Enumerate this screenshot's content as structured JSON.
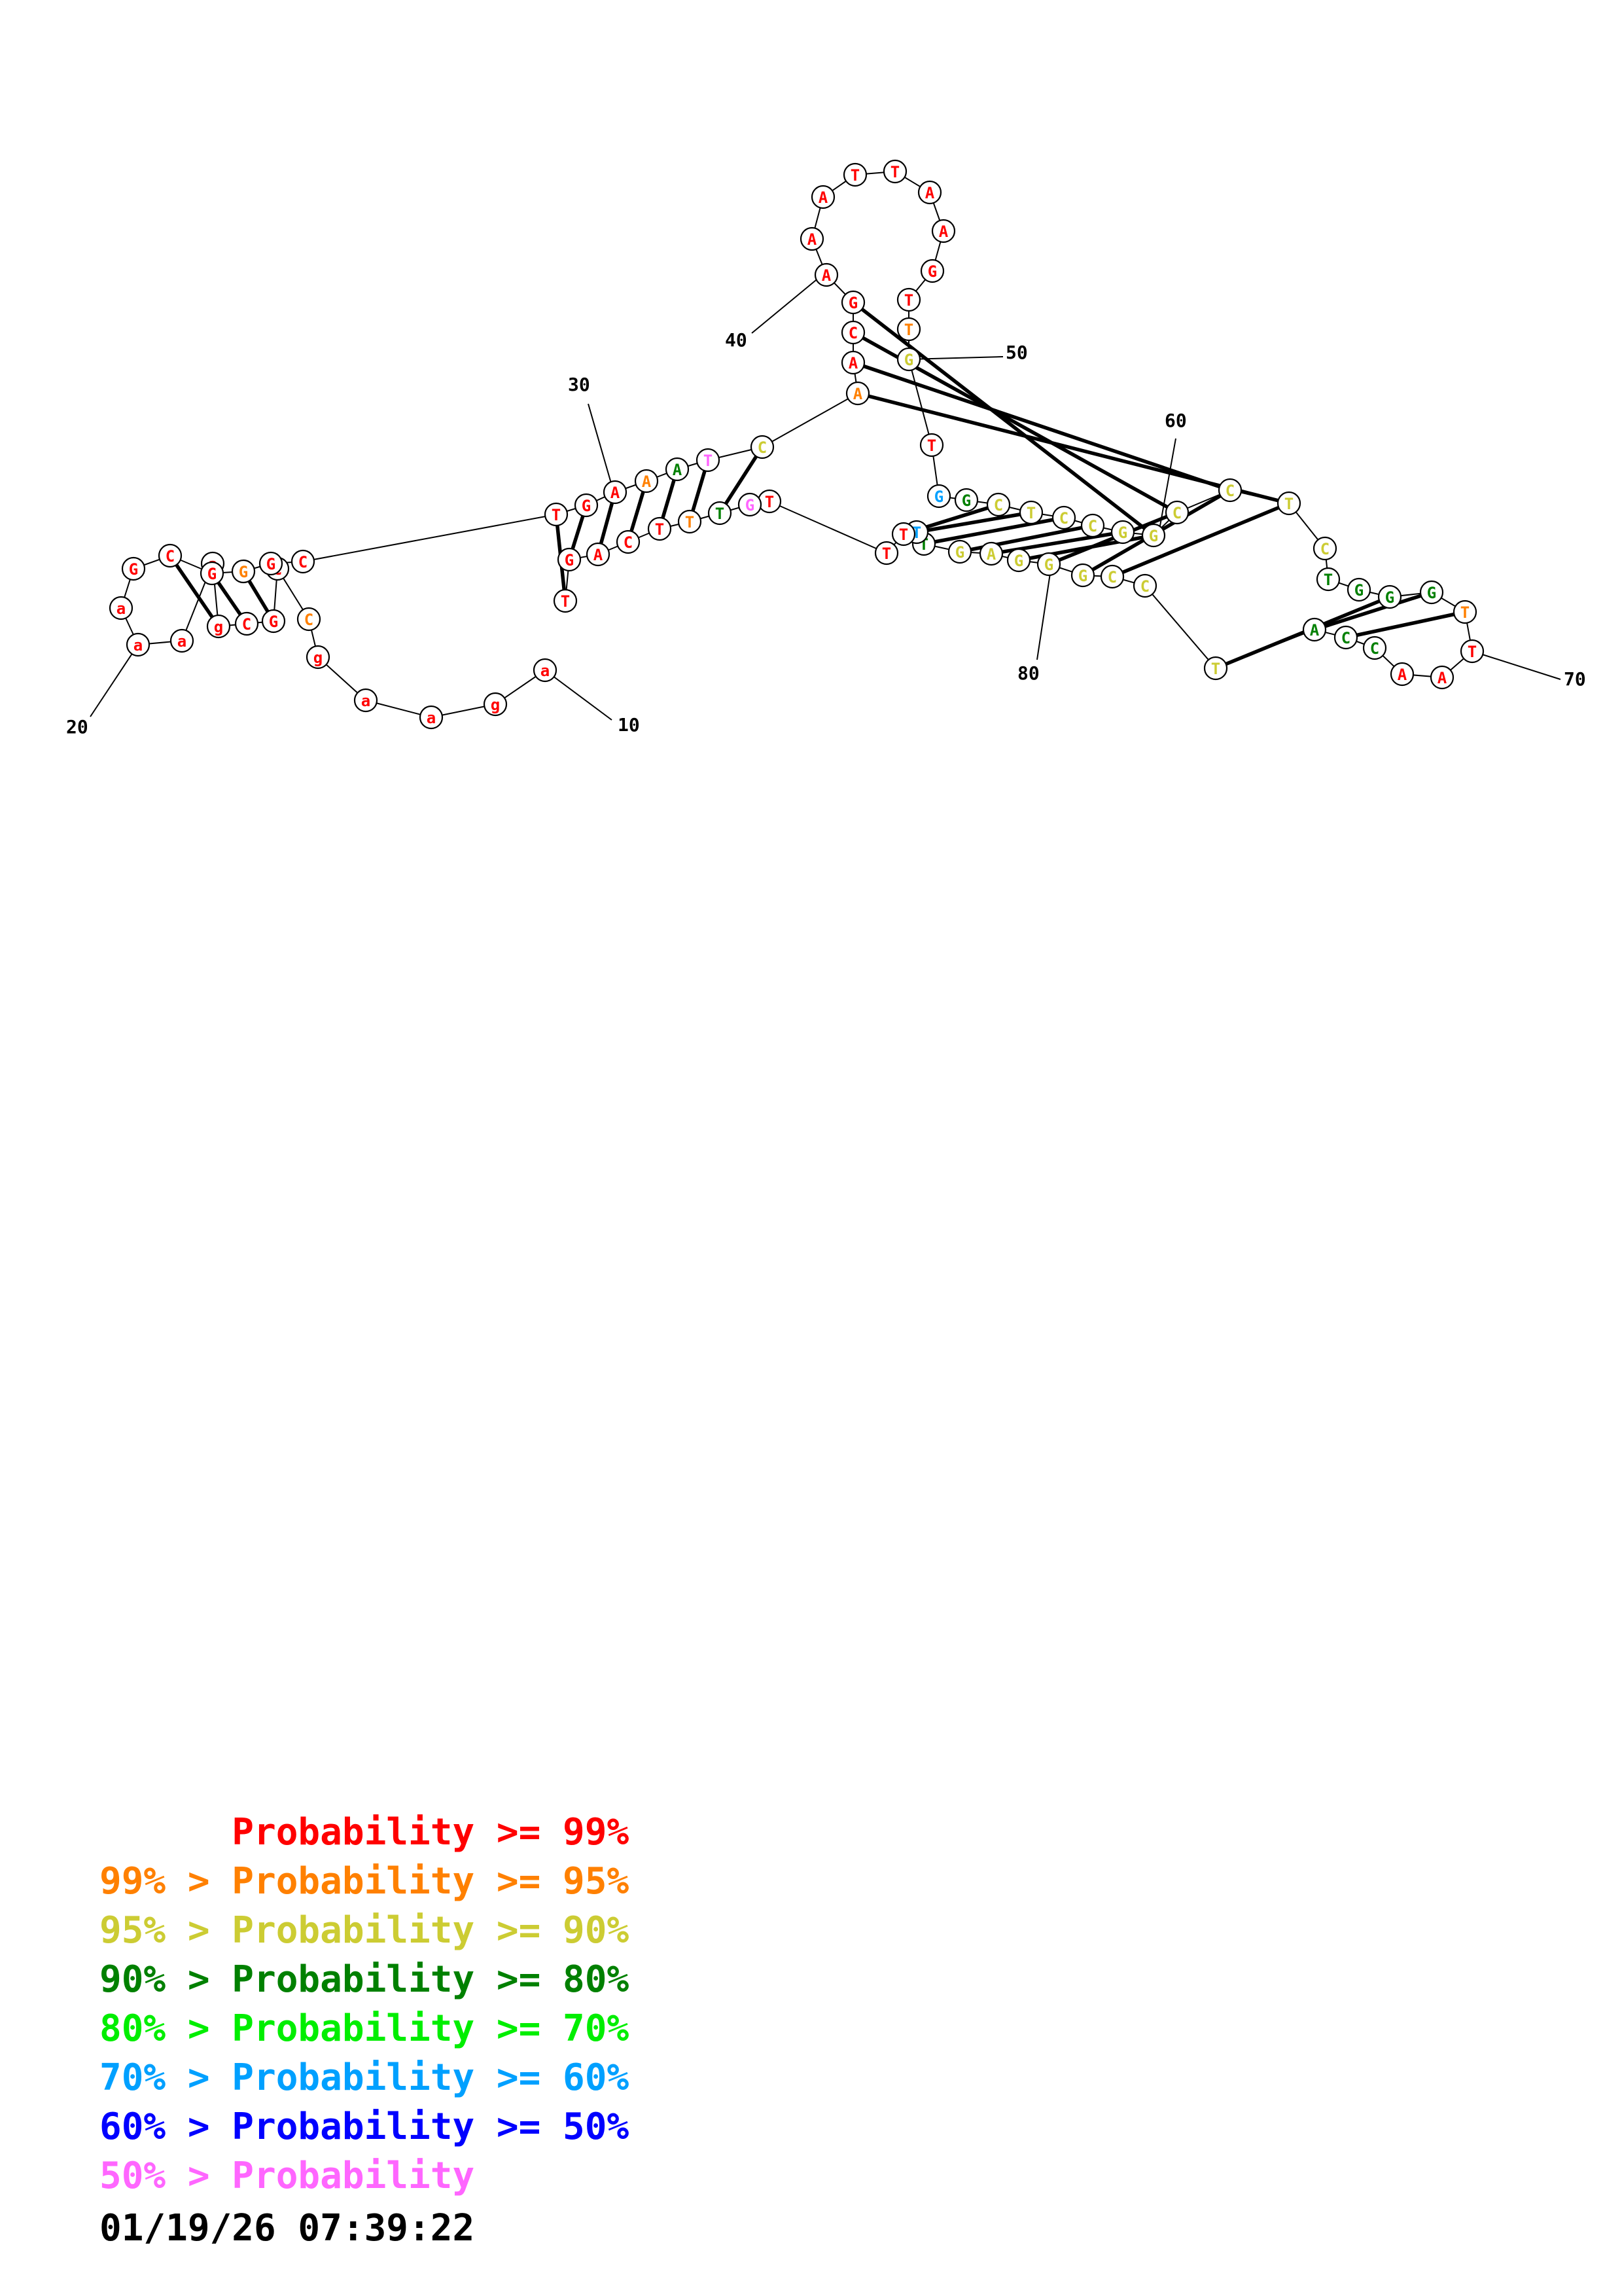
{
  "colors": {
    "red": "#ff0000",
    "orange": "#ff8000",
    "yellow": "#cccc33",
    "darkgreen": "#008000",
    "green": "#00ee00",
    "cyan": "#00a0ff",
    "blue": "#0000ff",
    "pink": "#ff66ff"
  },
  "nucleotides": [
    {
      "letter": "a",
      "color": "red"
    },
    {
      "letter": "g",
      "color": "red"
    },
    {
      "letter": "a",
      "color": "red"
    },
    {
      "letter": "a",
      "color": "red"
    },
    {
      "letter": "g",
      "color": "red"
    },
    {
      "letter": "C",
      "color": "orange"
    },
    {
      "letter": "C",
      "color": "red"
    },
    {
      "letter": "G",
      "color": "red"
    },
    {
      "letter": "C",
      "color": "red"
    },
    {
      "letter": "g",
      "color": "red"
    },
    {
      "letter": "a",
      "color": "red"
    },
    {
      "letter": "a",
      "color": "red"
    },
    {
      "letter": "a",
      "color": "red"
    },
    {
      "letter": "a",
      "color": "red"
    },
    {
      "letter": "G",
      "color": "red"
    },
    {
      "letter": "C",
      "color": "red"
    },
    {
      "letter": "G",
      "color": "red"
    },
    {
      "letter": "G",
      "color": "orange"
    },
    {
      "letter": "G",
      "color": "red"
    },
    {
      "letter": "C",
      "color": "red"
    },
    {
      "letter": "T",
      "color": "red"
    },
    {
      "letter": "G",
      "color": "red"
    },
    {
      "letter": "A",
      "color": "red"
    },
    {
      "letter": "A",
      "color": "orange"
    },
    {
      "letter": "A",
      "color": "darkgreen"
    },
    {
      "letter": "T",
      "color": "pink"
    },
    {
      "letter": "C",
      "color": "yellow"
    },
    {
      "letter": "A",
      "color": "orange"
    },
    {
      "letter": "A",
      "color": "red"
    },
    {
      "letter": "C",
      "color": "red"
    },
    {
      "letter": "G",
      "color": "red"
    },
    {
      "letter": "A",
      "color": "red"
    },
    {
      "letter": "A",
      "color": "red"
    },
    {
      "letter": "A",
      "color": "red"
    },
    {
      "letter": "T",
      "color": "red"
    },
    {
      "letter": "T",
      "color": "red"
    },
    {
      "letter": "A",
      "color": "red"
    },
    {
      "letter": "A",
      "color": "red"
    },
    {
      "letter": "G",
      "color": "red"
    },
    {
      "letter": "T",
      "color": "red"
    },
    {
      "letter": "T",
      "color": "orange"
    },
    {
      "letter": "G",
      "color": "yellow"
    },
    {
      "letter": "T",
      "color": "red"
    },
    {
      "letter": "G",
      "color": "cyan"
    },
    {
      "letter": "G",
      "color": "darkgreen"
    },
    {
      "letter": "C",
      "color": "yellow"
    },
    {
      "letter": "T",
      "color": "yellow"
    },
    {
      "letter": "C",
      "color": "yellow"
    },
    {
      "letter": "C",
      "color": "yellow"
    },
    {
      "letter": "G",
      "color": "yellow"
    },
    {
      "letter": "G",
      "color": "yellow"
    },
    {
      "letter": "C",
      "color": "yellow"
    },
    {
      "letter": "C",
      "color": "yellow"
    },
    {
      "letter": "T",
      "color": "yellow"
    },
    {
      "letter": "C",
      "color": "yellow"
    },
    {
      "letter": "T",
      "color": "darkgreen"
    },
    {
      "letter": "G",
      "color": "darkgreen"
    },
    {
      "letter": "G",
      "color": "darkgreen"
    },
    {
      "letter": "G",
      "color": "darkgreen"
    },
    {
      "letter": "T",
      "color": "orange"
    },
    {
      "letter": "T",
      "color": "red"
    },
    {
      "letter": "A",
      "color": "red"
    },
    {
      "letter": "A",
      "color": "red"
    },
    {
      "letter": "C",
      "color": "darkgreen"
    },
    {
      "letter": "C",
      "color": "darkgreen"
    },
    {
      "letter": "A",
      "color": "darkgreen"
    },
    {
      "letter": "T",
      "color": "yellow"
    },
    {
      "letter": "C",
      "color": "yellow"
    },
    {
      "letter": "C",
      "color": "yellow"
    },
    {
      "letter": "G",
      "color": "yellow"
    },
    {
      "letter": "G",
      "color": "yellow"
    },
    {
      "letter": "G",
      "color": "yellow"
    },
    {
      "letter": "A",
      "color": "yellow"
    },
    {
      "letter": "G",
      "color": "yellow"
    },
    {
      "letter": "T",
      "color": "darkgreen"
    },
    {
      "letter": "T",
      "color": "cyan"
    },
    {
      "letter": "T",
      "color": "red"
    },
    {
      "letter": "T",
      "color": "red"
    },
    {
      "letter": "T",
      "color": "red"
    },
    {
      "letter": "G",
      "color": "pink"
    },
    {
      "letter": "T",
      "color": "darkgreen"
    },
    {
      "letter": "T",
      "color": "orange"
    },
    {
      "letter": "T",
      "color": "red"
    },
    {
      "letter": "C",
      "color": "red"
    },
    {
      "letter": "A",
      "color": "red"
    },
    {
      "letter": "G",
      "color": "red"
    },
    {
      "letter": "T",
      "color": "red"
    },
    {
      "letter": "T",
      "color": "orange"
    }
  ],
  "base_pairs": [
    [
      6,
      18
    ],
    [
      7,
      17
    ],
    [
      8,
      16
    ],
    [
      9,
      15
    ],
    [
      19,
      87
    ],
    [
      20,
      86
    ],
    [
      21,
      85
    ],
    [
      22,
      84
    ],
    [
      23,
      83
    ],
    [
      24,
      82
    ],
    [
      25,
      81
    ],
    [
      26,
      80
    ],
    [
      27,
      53
    ],
    [
      28,
      52
    ],
    [
      29,
      51
    ],
    [
      30,
      50
    ],
    [
      45,
      76
    ],
    [
      46,
      75
    ],
    [
      47,
      74
    ],
    [
      48,
      73
    ],
    [
      49,
      72
    ],
    [
      50,
      71
    ],
    [
      51,
      70
    ],
    [
      52,
      69
    ],
    [
      53,
      68
    ],
    [
      57,
      66
    ],
    [
      58,
      65
    ],
    [
      59,
      64
    ]
  ],
  "position_labels": [
    "10",
    "20",
    "30",
    "40",
    "50",
    "60",
    "70",
    "80"
  ],
  "legend": [
    {
      "text": "      Probability >= 99%",
      "color": "red"
    },
    {
      "text": "99% > Probability >= 95%",
      "color": "orange"
    },
    {
      "text": "95% > Probability >= 90%",
      "color": "yellow"
    },
    {
      "text": "90% > Probability >= 80%",
      "color": "darkgreen"
    },
    {
      "text": "80% > Probability >= 70%",
      "color": "green"
    },
    {
      "text": "70% > Probability >= 60%",
      "color": "cyan"
    },
    {
      "text": "60% > Probability >= 50%",
      "color": "blue"
    },
    {
      "text": "50% > Probability",
      "color": "pink"
    }
  ],
  "timestamp": "01/19/26 07:39:22"
}
